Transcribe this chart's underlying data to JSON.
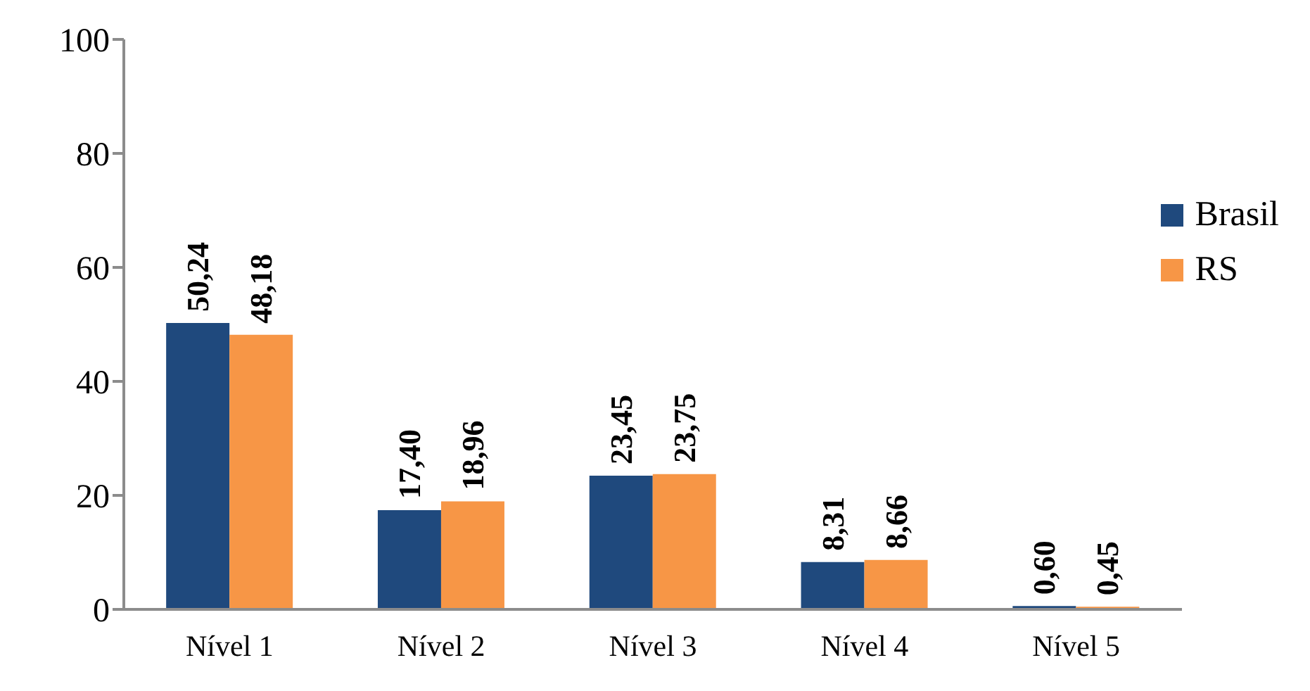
{
  "chart_data": {
    "type": "bar",
    "categories": [
      "Nível 1",
      "Nível 2",
      "Nível 3",
      "Nível 4",
      "Nível 5"
    ],
    "series": [
      {
        "name": "Brasil",
        "color": "#1f497d",
        "values": [
          50.24,
          17.4,
          23.45,
          8.31,
          0.6
        ],
        "value_labels": [
          "50,24",
          "17,40",
          "23,45",
          "8,31",
          "0,60"
        ]
      },
      {
        "name": "RS",
        "color": "#f79646",
        "values": [
          48.18,
          18.96,
          23.75,
          8.66,
          0.45
        ],
        "value_labels": [
          "48,18",
          "18,96",
          "23,75",
          "8,66",
          "0,45"
        ]
      }
    ],
    "ylim": [
      0,
      100
    ],
    "yticks": [
      0,
      20,
      40,
      60,
      80,
      100
    ],
    "legend": "right"
  }
}
